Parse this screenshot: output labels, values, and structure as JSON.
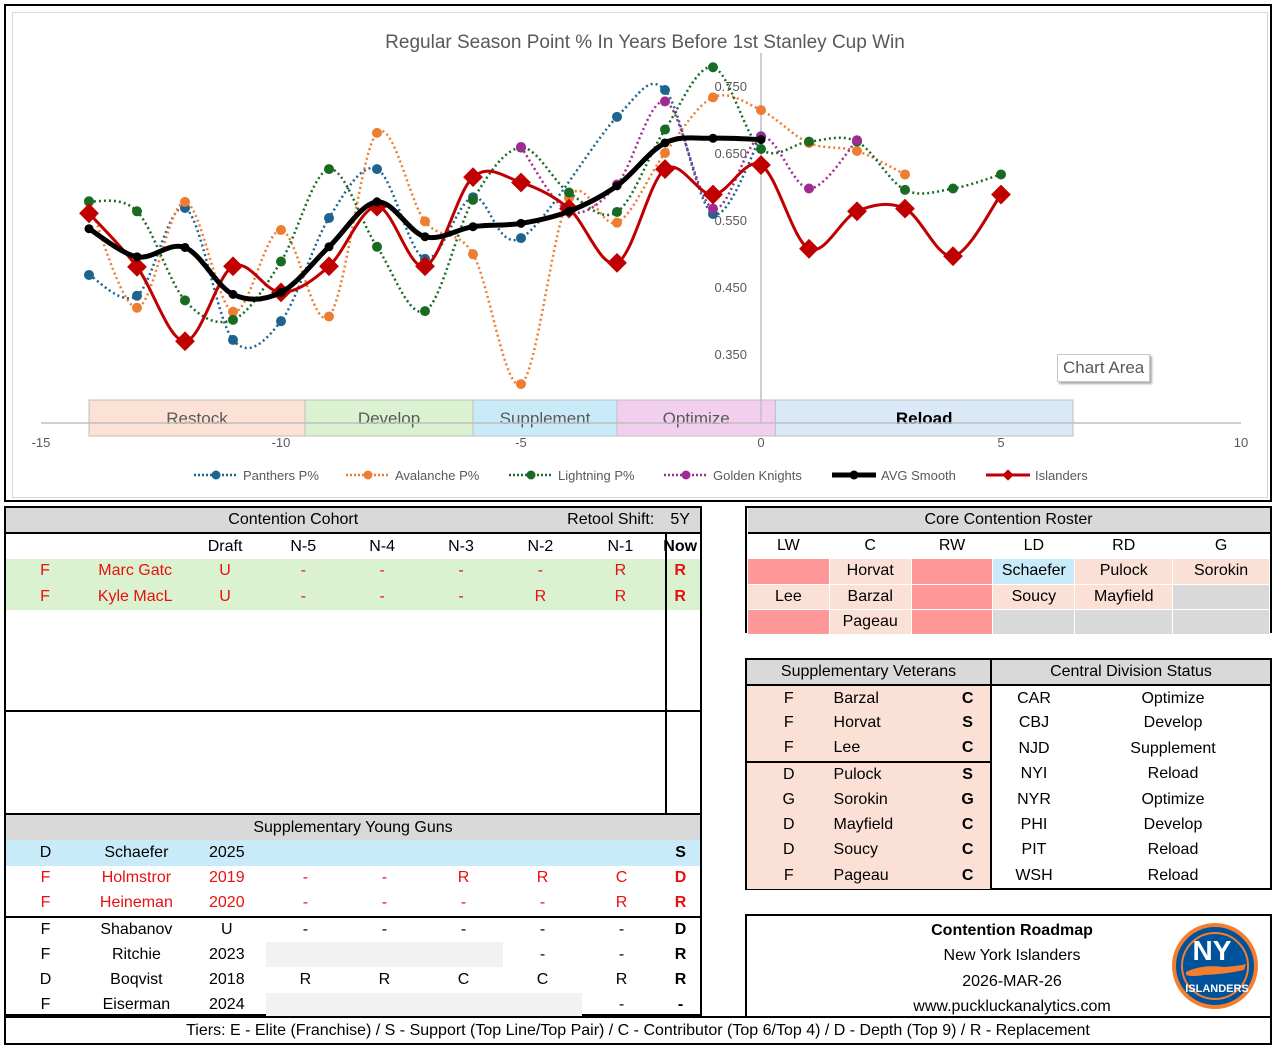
{
  "chart_data": {
    "type": "line",
    "title": "Regular Season Point % In Years Before 1st Stanley Cup Win",
    "xlabel": "",
    "ylabel": "",
    "xlim": [
      -15,
      10
    ],
    "ylim": [
      0.25,
      0.8
    ],
    "x_ticks": [
      "-15",
      "-10",
      "-5",
      "0",
      "5",
      "10"
    ],
    "y_ticks": [
      "0.350",
      "0.450",
      "0.550",
      "0.650",
      "0.750"
    ],
    "y_tick_values": [
      0.35,
      0.45,
      0.55,
      0.65,
      0.75
    ],
    "grid": false,
    "legend_position": "bottom",
    "phases": [
      {
        "label": "Restock",
        "from": -14,
        "to": -9.5,
        "color": "#fbe2d5"
      },
      {
        "label": "Develop",
        "from": -9.5,
        "to": -6,
        "color": "#daf2d0"
      },
      {
        "label": "Supplement",
        "from": -6,
        "to": -3,
        "color": "#c9ebf9"
      },
      {
        "label": "Optimize",
        "from": -3,
        "to": 0.3,
        "color": "#f2cfee"
      },
      {
        "label": "Reload",
        "from": 0.3,
        "to": 6.5,
        "color": "#dae9f8",
        "bold": true
      }
    ],
    "series": [
      {
        "name": "Panthers P%",
        "color": "#1f6391",
        "style": "dotted",
        "marker": "circle",
        "x": [
          -14,
          -13,
          -12,
          -11,
          -10,
          -9,
          -8,
          -7,
          -6,
          -5,
          -3,
          -2,
          -1,
          0
        ],
        "values": [
          0.468,
          0.437,
          0.568,
          0.371,
          0.399,
          0.553,
          0.626,
          0.492,
          0.584,
          0.523,
          0.704,
          0.744,
          0.559,
          0.675
        ]
      },
      {
        "name": "Avalanche P%",
        "color": "#ed7d31",
        "style": "dotted",
        "marker": "circle",
        "x": [
          -14,
          -13,
          -12,
          -11,
          -10,
          -9,
          -8,
          -7,
          -6,
          -5,
          -4,
          -3,
          -2,
          -1,
          0,
          1,
          2,
          3
        ],
        "values": [
          0.577,
          0.419,
          0.577,
          0.413,
          0.535,
          0.406,
          0.68,
          0.548,
          0.499,
          0.305,
          0.583,
          0.546,
          0.65,
          0.733,
          0.714,
          0.665,
          0.653,
          0.618
        ]
      },
      {
        "name": "Lightning P%",
        "color": "#196b24",
        "style": "dotted",
        "marker": "circle",
        "x": [
          -14,
          -13,
          -12,
          -11,
          -10,
          -9,
          -8,
          -7,
          -6,
          -5,
          -4,
          -3,
          -2,
          -1,
          0,
          1,
          2,
          3,
          4,
          5
        ],
        "values": [
          0.578,
          0.563,
          0.43,
          0.401,
          0.488,
          0.626,
          0.51,
          0.414,
          0.58,
          0.658,
          0.591,
          0.562,
          0.685,
          0.778,
          0.656,
          0.667,
          0.667,
          0.595,
          0.597,
          0.618
        ]
      },
      {
        "name": "Golden Knights",
        "color": "#a02b93",
        "style": "dotted",
        "marker": "circle",
        "x": [
          -5,
          -4,
          -3,
          -2,
          -1,
          0,
          1,
          2
        ],
        "values": [
          0.659,
          0.563,
          0.603,
          0.727,
          0.567,
          0.674,
          0.597,
          0.669
        ]
      },
      {
        "name": "AVG Smooth",
        "color": "#000000",
        "style": "solid-thick",
        "marker": "circle",
        "x": [
          -14,
          -13,
          -12,
          -11,
          -10,
          -9,
          -8,
          -7,
          -6,
          -5,
          -4,
          -3,
          -2,
          -1,
          0
        ],
        "values": [
          0.537,
          0.495,
          0.509,
          0.439,
          0.442,
          0.51,
          0.577,
          0.525,
          0.54,
          0.545,
          0.563,
          0.601,
          0.665,
          0.672,
          0.67
        ]
      },
      {
        "name": "Islanders",
        "color": "#c00000",
        "style": "solid",
        "marker": "diamond",
        "x": [
          -14,
          -13,
          -12,
          -11,
          -10,
          -9,
          -8,
          -7,
          -6,
          -5,
          -4,
          -3,
          -2,
          -1,
          0,
          1,
          2,
          3,
          4,
          5
        ],
        "values": [
          0.56,
          0.48,
          0.369,
          0.481,
          0.442,
          0.481,
          0.57,
          0.481,
          0.614,
          0.606,
          0.567,
          0.486,
          0.626,
          0.588,
          0.632,
          0.507,
          0.563,
          0.567,
          0.496,
          0.588
        ]
      }
    ]
  },
  "chart_tooltip": "Chart Area",
  "cohort": {
    "title": "Contention Cohort",
    "retool_label": "Retool Shift:",
    "retool_value": "5Y",
    "columns": [
      "",
      "",
      "Draft",
      "N-5",
      "N-4",
      "N-3",
      "N-2",
      "N-1",
      "Now"
    ],
    "rows": [
      {
        "pos": "F",
        "name": "Marc Gatc",
        "draft": "U",
        "n5": "-",
        "n4": "-",
        "n3": "-",
        "n2": "-",
        "n1": "R",
        "now": "R"
      },
      {
        "pos": "F",
        "name": "Kyle MacL",
        "draft": "U",
        "n5": "-",
        "n4": "-",
        "n3": "-",
        "n2": "R",
        "n1": "R",
        "now": "R"
      }
    ]
  },
  "young_guns": {
    "title": "Supplementary Young Guns",
    "rows": [
      {
        "pos": "D",
        "name": "Schaefer",
        "draft": "2025",
        "n5": "",
        "n4": "",
        "n3": "",
        "n2": "",
        "n1": "",
        "now": "S"
      },
      {
        "pos": "F",
        "name": "Holmstror",
        "draft": "2019",
        "n5": "-",
        "n4": "-",
        "n3": "R",
        "n2": "R",
        "n1": "C",
        "now": "D"
      },
      {
        "pos": "F",
        "name": "Heineman",
        "draft": "2020",
        "n5": "-",
        "n4": "-",
        "n3": "-",
        "n2": "-",
        "n1": "R",
        "now": "R"
      },
      {
        "pos": "F",
        "name": "Shabanov",
        "draft": "U",
        "n5": "-",
        "n4": "-",
        "n3": "-",
        "n2": "-",
        "n1": "-",
        "now": "D"
      },
      {
        "pos": "F",
        "name": "Ritchie",
        "draft": "2023",
        "n5": "",
        "n4": "",
        "n3": "",
        "n2": "-",
        "n1": "-",
        "now": "R"
      },
      {
        "pos": "D",
        "name": "Boqvist",
        "draft": "2018",
        "n5": "R",
        "n4": "R",
        "n3": "C",
        "n2": "C",
        "n1": "R",
        "now": "R"
      },
      {
        "pos": "F",
        "name": "Eiserman",
        "draft": "2024",
        "n5": "",
        "n4": "",
        "n3": "",
        "n2": "",
        "n1": "-",
        "now": "-"
      }
    ]
  },
  "tiers_text": "Tiers:  E - Elite (Franchise) / S - Support (Top Line/Top Pair) / C - Contributor (Top 6/Top 4) / D - Depth (Top 9) / R - Replacement",
  "roster": {
    "title": "Core Contention Roster",
    "columns": [
      "LW",
      "C",
      "RW",
      "LD",
      "RD",
      "G"
    ],
    "rows": [
      [
        "",
        "Horvat",
        "",
        "Schaefer",
        "Pulock",
        "Sorokin"
      ],
      [
        "Lee",
        "Barzal",
        "",
        "Soucy",
        "Mayfield",
        ""
      ],
      [
        "",
        "Pageau",
        "",
        "",
        "",
        ""
      ]
    ]
  },
  "veterans": {
    "title": "Supplementary Veterans",
    "rows": [
      {
        "pos": "F",
        "name": "Barzal",
        "tier": "C"
      },
      {
        "pos": "F",
        "name": "Horvat",
        "tier": "S"
      },
      {
        "pos": "F",
        "name": "Lee",
        "tier": "C"
      },
      {
        "pos": "D",
        "name": "Pulock",
        "tier": "S"
      },
      {
        "pos": "G",
        "name": "Sorokin",
        "tier": "G"
      },
      {
        "pos": "D",
        "name": "Mayfield",
        "tier": "C"
      },
      {
        "pos": "D",
        "name": "Soucy",
        "tier": "C"
      },
      {
        "pos": "F",
        "name": "Pageau",
        "tier": "C"
      }
    ]
  },
  "division": {
    "title": "Central Division Status",
    "rows": [
      {
        "team": "CAR",
        "status": "Optimize"
      },
      {
        "team": "CBJ",
        "status": "Develop"
      },
      {
        "team": "NJD",
        "status": "Supplement"
      },
      {
        "team": "NYI",
        "status": "Reload"
      },
      {
        "team": "NYR",
        "status": "Optimize"
      },
      {
        "team": "PHI",
        "status": "Develop"
      },
      {
        "team": "PIT",
        "status": "Reload"
      },
      {
        "team": "WSH",
        "status": "Reload"
      }
    ]
  },
  "roadmap": {
    "title": "Contention Roadmap",
    "team": "New York Islanders",
    "date": "2026-MAR-26",
    "website": "www.puckluckanalytics.com",
    "logo_text": "ISLANDERS",
    "logo_mark": "NY"
  }
}
